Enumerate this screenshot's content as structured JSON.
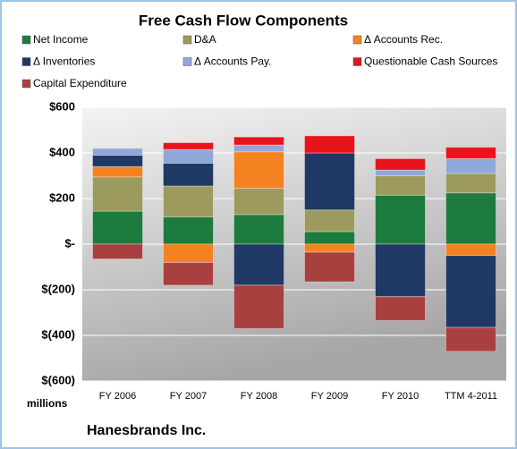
{
  "chart_data": {
    "type": "stacked_bar",
    "title": "Free Cash Flow Components",
    "y_axis_label": "millions",
    "footnote": "Hanesbrands Inc.",
    "categories": [
      "FY 2006",
      "FY 2007",
      "FY 2008",
      "FY 2009",
      "FY 2010",
      "TTM 4-2011"
    ],
    "series": [
      {
        "name": "Net Income",
        "color": "#1e7b3e",
        "values": [
          145,
          120,
          130,
          55,
          215,
          225
        ]
      },
      {
        "name": "D&A",
        "color": "#9c9a5c",
        "values": [
          150,
          135,
          115,
          95,
          85,
          85
        ]
      },
      {
        "name": "Δ Accounts Rec.",
        "color": "#f58220",
        "values": [
          45,
          -80,
          160,
          -35,
          0,
          -50
        ]
      },
      {
        "name": "Δ Inventories",
        "color": "#1f3864",
        "values": [
          50,
          100,
          -180,
          250,
          -230,
          -315
        ]
      },
      {
        "name": "Δ Accounts Pay.",
        "color": "#8fa8d8",
        "values": [
          30,
          60,
          30,
          0,
          25,
          65
        ]
      },
      {
        "name": "Questionable Cash Sources",
        "color": "#e8141c",
        "values": [
          0,
          30,
          35,
          75,
          50,
          50
        ]
      },
      {
        "name": "Capital Expenditure",
        "color": "#a94040",
        "values": [
          -65,
          -100,
          -190,
          -130,
          -105,
          -105
        ]
      }
    ],
    "ylim": [
      -600,
      600
    ],
    "yticks": [
      {
        "value": -600,
        "label": "$(600)"
      },
      {
        "value": -400,
        "label": "$(400)"
      },
      {
        "value": -200,
        "label": "$(200)"
      },
      {
        "value": 0,
        "label": "$-"
      },
      {
        "value": 200,
        "label": "$200"
      },
      {
        "value": 400,
        "label": "$400"
      },
      {
        "value": 600,
        "label": "$600"
      }
    ],
    "grid": true
  }
}
